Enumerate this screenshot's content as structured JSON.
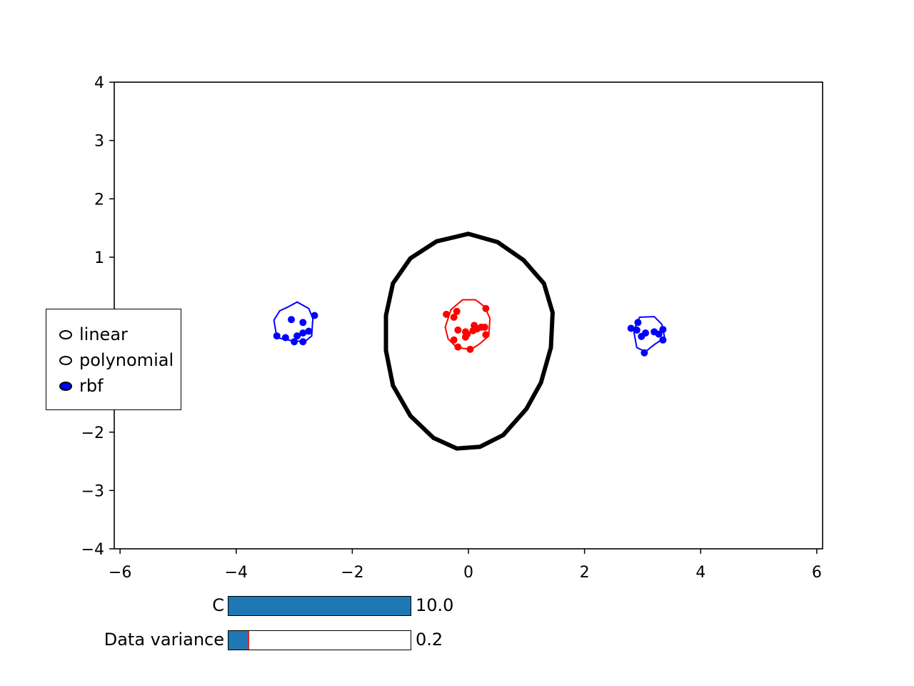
{
  "chart_data": {
    "type": "scatter",
    "title": "",
    "xlabel": "",
    "ylabel": "",
    "xlim": [
      -6.1,
      6.1
    ],
    "ylim": [
      -4,
      4
    ],
    "x_ticks": [
      -6,
      -4,
      -2,
      0,
      2,
      4,
      6
    ],
    "y_ticks": [
      -4,
      -3,
      -2,
      1,
      2,
      3,
      4
    ],
    "x_tick_labels": [
      "−6",
      "−4",
      "−2",
      "0",
      "2",
      "4",
      "6"
    ],
    "y_tick_labels": [
      "−4",
      "−3",
      "−2",
      "1",
      "2",
      "3",
      "4"
    ],
    "grid": false,
    "series": [
      {
        "color": "#ff0000",
        "points": [
          [
            -0.38,
            0.02
          ],
          [
            -0.25,
            -0.03
          ],
          [
            -0.2,
            0.07
          ],
          [
            0.3,
            0.12
          ],
          [
            -0.18,
            -0.25
          ],
          [
            0.1,
            -0.17
          ],
          [
            0.22,
            -0.2
          ],
          [
            0.28,
            -0.2
          ],
          [
            -0.05,
            -0.28
          ],
          [
            0.3,
            -0.33
          ],
          [
            -0.02,
            -0.32
          ],
          [
            -0.05,
            -0.37
          ],
          [
            -0.25,
            -0.42
          ],
          [
            -0.18,
            -0.54
          ],
          [
            0.03,
            -0.58
          ],
          [
            0.15,
            -0.23
          ],
          [
            0.08,
            -0.26
          ]
        ]
      },
      {
        "color": "#0000ff",
        "points": [
          [
            -2.65,
            0.0
          ],
          [
            -3.05,
            -0.07
          ],
          [
            -2.85,
            -0.12
          ],
          [
            -2.75,
            -0.27
          ],
          [
            -2.85,
            -0.3
          ],
          [
            -3.3,
            -0.35
          ],
          [
            -3.15,
            -0.38
          ],
          [
            -2.95,
            -0.35
          ],
          [
            -3.0,
            -0.45
          ],
          [
            -2.85,
            -0.45
          ]
        ]
      },
      {
        "color": "#0000ff",
        "points": [
          [
            2.92,
            -0.12
          ],
          [
            2.8,
            -0.22
          ],
          [
            2.9,
            -0.25
          ],
          [
            3.2,
            -0.28
          ],
          [
            3.35,
            -0.24
          ],
          [
            3.05,
            -0.3
          ],
          [
            3.28,
            -0.32
          ],
          [
            2.98,
            -0.36
          ],
          [
            3.35,
            -0.42
          ],
          [
            3.03,
            -0.64
          ]
        ]
      }
    ],
    "decision_boundary": {
      "color": "#000000",
      "points": [
        [
          0,
          1.4
        ],
        [
          0.5,
          1.26
        ],
        [
          0.95,
          0.95
        ],
        [
          1.3,
          0.55
        ],
        [
          1.45,
          0.05
        ],
        [
          1.42,
          -0.55
        ],
        [
          1.25,
          -1.15
        ],
        [
          1.0,
          -1.6
        ],
        [
          0.6,
          -2.05
        ],
        [
          0.2,
          -2.25
        ],
        [
          -0.2,
          -2.28
        ],
        [
          -0.6,
          -2.1
        ],
        [
          -1.0,
          -1.72
        ],
        [
          -1.3,
          -1.2
        ],
        [
          -1.42,
          -0.6
        ],
        [
          -1.42,
          0.0
        ],
        [
          -1.3,
          0.55
        ],
        [
          -1.0,
          0.98
        ],
        [
          -0.55,
          1.27
        ]
      ]
    },
    "class_contours": [
      {
        "color": "#ff0000",
        "points": [
          [
            -0.1,
            0.27
          ],
          [
            0.12,
            0.27
          ],
          [
            0.28,
            0.15
          ],
          [
            0.37,
            -0.05
          ],
          [
            0.35,
            -0.35
          ],
          [
            0.2,
            -0.48
          ],
          [
            0.05,
            -0.58
          ],
          [
            -0.2,
            -0.55
          ],
          [
            -0.35,
            -0.4
          ],
          [
            -0.4,
            -0.2
          ],
          [
            -0.3,
            0.1
          ]
        ]
      },
      {
        "color": "#0000ff",
        "points": [
          [
            -3.1,
            0.15
          ],
          [
            -2.95,
            0.23
          ],
          [
            -2.75,
            0.12
          ],
          [
            -2.68,
            -0.05
          ],
          [
            -2.7,
            -0.35
          ],
          [
            -2.82,
            -0.45
          ],
          [
            -3.05,
            -0.43
          ],
          [
            -3.3,
            -0.38
          ],
          [
            -3.35,
            -0.08
          ],
          [
            -3.25,
            0.08
          ]
        ]
      },
      {
        "color": "#0000ff",
        "points": [
          [
            2.95,
            -0.03
          ],
          [
            3.2,
            -0.02
          ],
          [
            3.33,
            -0.15
          ],
          [
            3.38,
            -0.38
          ],
          [
            3.2,
            -0.5
          ],
          [
            3.05,
            -0.62
          ],
          [
            2.9,
            -0.55
          ],
          [
            2.85,
            -0.28
          ],
          [
            2.9,
            -0.12
          ]
        ]
      }
    ]
  },
  "radio_panel": {
    "options": [
      {
        "label": "linear",
        "selected": false
      },
      {
        "label": "polynomial",
        "selected": false
      },
      {
        "label": "rbf",
        "selected": true
      }
    ]
  },
  "sliders": {
    "c": {
      "label": "C",
      "value_text": "10.0",
      "fraction": 1.0,
      "marker_fraction": null
    },
    "variance": {
      "label": "Data variance",
      "value_text": "0.2",
      "fraction": 0.11,
      "marker_fraction": 0.11
    }
  },
  "colors": {
    "fill": "#1f77b4",
    "marker": "#d62728",
    "selected_radio": "#0000ff"
  }
}
